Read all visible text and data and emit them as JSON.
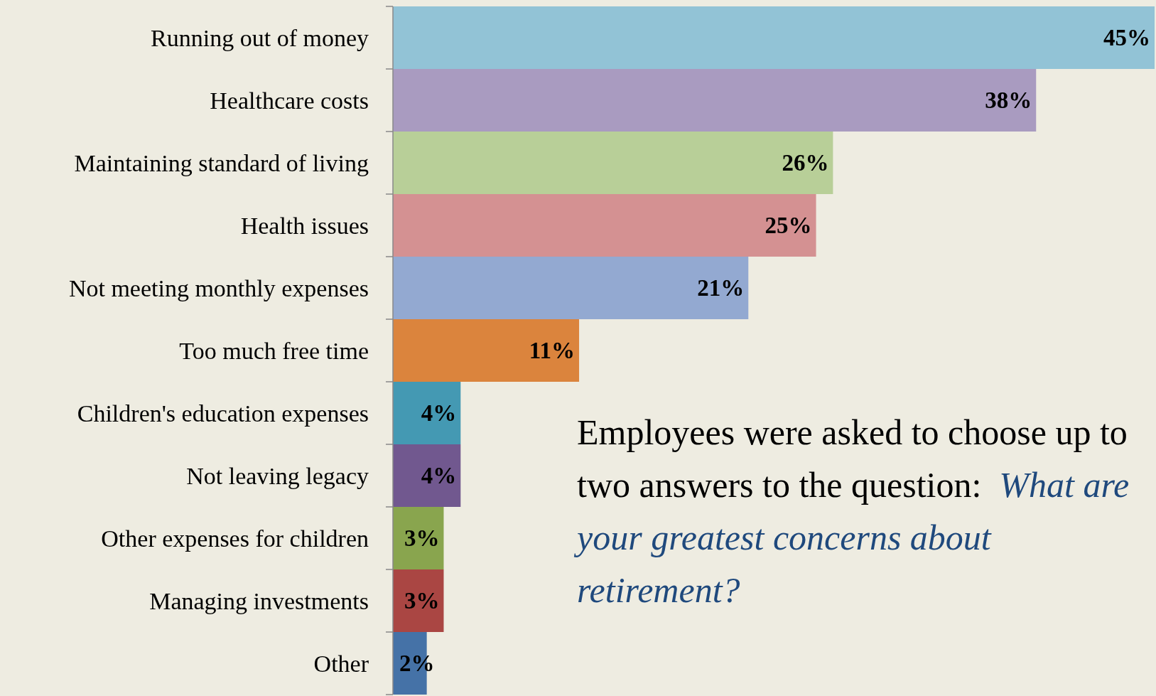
{
  "chart_data": {
    "type": "bar",
    "orientation": "horizontal",
    "value_labels": [
      "45%",
      "38%",
      "26%",
      "25%",
      "21%",
      "11%",
      "4%",
      "4%",
      "3%",
      "3%",
      "2%"
    ],
    "categories": [
      "Running out of money",
      "Healthcare costs",
      "Maintaining standard of living",
      "Health issues",
      "Not meeting monthly expenses",
      "Too much free time",
      "Children's education expenses",
      "Not leaving legacy",
      "Other expenses for children",
      "Managing investments",
      "Other"
    ],
    "values": [
      45,
      38,
      26,
      25,
      21,
      11,
      4,
      4,
      3,
      3,
      2
    ],
    "colors": [
      "#92c3d6",
      "#a99bc0",
      "#b8cf98",
      "#d49192",
      "#93a9d1",
      "#db843d",
      "#4499b3",
      "#71588f",
      "#89a54e",
      "#aa4643",
      "#4572a7"
    ],
    "annotations": [
      "Employees were asked to choose up to two answers to the question:",
      "What are your greatest concerns about retirement?"
    ]
  }
}
